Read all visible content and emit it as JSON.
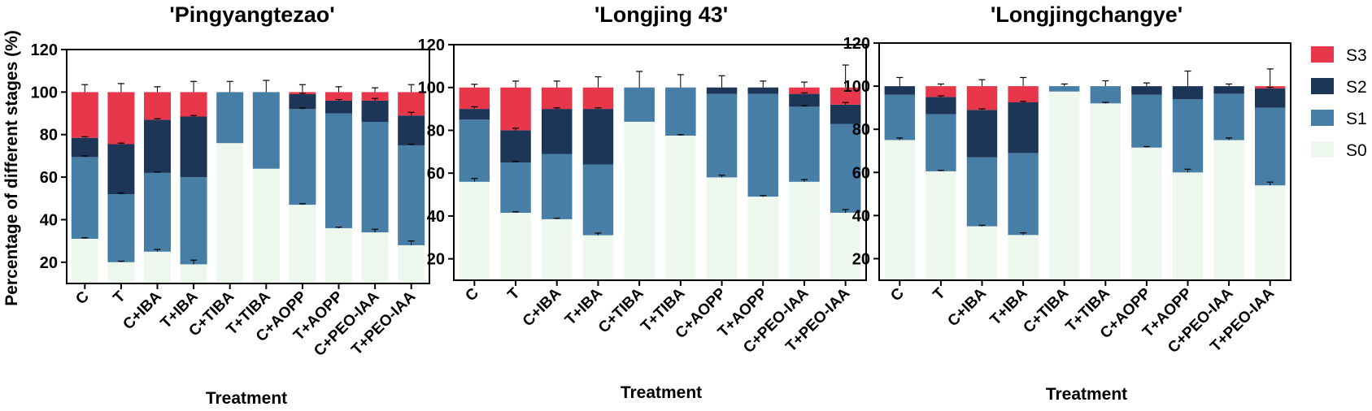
{
  "chart_data": [
    {
      "type": "bar",
      "stacked": true,
      "title": "'Pingyangtezao'",
      "xlabel": "Treatment",
      "ylabel": "Percentage of different stages (%)",
      "ylim": [
        10,
        120
      ],
      "yticks": [
        20,
        40,
        60,
        80,
        100,
        120
      ],
      "categories": [
        "C",
        "T",
        "C+IBA",
        "T+IBA",
        "C+TIBA",
        "T+TIBA",
        "C+AOPP",
        "T+AOPP",
        "C+PEO-IAA",
        "T+PEO-IAA"
      ],
      "series": [
        {
          "name": "S0",
          "values": [
            31,
            20,
            25,
            19,
            76,
            64,
            47,
            36,
            34,
            28
          ],
          "errors": [
            0.5,
            0.5,
            1,
            2,
            0,
            0,
            0.5,
            0.5,
            1.5,
            2
          ]
        },
        {
          "name": "S1",
          "values": [
            38.5,
            32,
            37,
            41,
            24,
            36,
            45,
            54,
            52,
            47
          ],
          "errors": [
            0.5,
            0.5,
            0.5,
            0,
            0,
            0,
            0.5,
            0,
            0,
            0.5
          ]
        },
        {
          "name": "S2",
          "values": [
            9,
            23.5,
            25,
            28.5,
            0,
            0,
            7,
            6,
            10,
            14
          ],
          "errors": [
            0.5,
            0.5,
            0.5,
            0.5,
            0,
            0,
            0.5,
            0.5,
            1,
            1.5
          ]
        },
        {
          "name": "S3",
          "values": [
            21.5,
            24.5,
            13,
            11.5,
            0,
            0,
            1,
            4,
            4,
            11
          ],
          "errors": [
            3.5,
            4,
            2.5,
            5,
            5,
            5.5,
            3.5,
            2.5,
            2,
            3.5
          ]
        }
      ]
    },
    {
      "type": "bar",
      "stacked": true,
      "title": "'Longjing 43'",
      "xlabel": "Treatment",
      "ylabel": "",
      "ylim": [
        10,
        120
      ],
      "yticks": [
        20,
        40,
        60,
        80,
        100,
        120
      ],
      "categories": [
        "C",
        "T",
        "C+IBA",
        "T+IBA",
        "C+TIBA",
        "T+TIBA",
        "C+AOPP",
        "T+AOPP",
        "C+PEO-IAA",
        "T+PEO-IAA"
      ],
      "series": [
        {
          "name": "S0",
          "values": [
            56,
            41.5,
            38.5,
            31,
            84,
            77.5,
            58,
            49,
            56,
            41.5
          ],
          "errors": [
            1.5,
            0.5,
            0.5,
            1,
            0,
            0.5,
            1,
            0.5,
            1,
            1.5
          ]
        },
        {
          "name": "S1",
          "values": [
            29,
            23.5,
            30.5,
            33,
            16,
            22.5,
            39,
            48,
            35,
            41.5
          ],
          "errors": [
            0,
            0.5,
            0,
            0,
            0,
            0,
            0,
            0,
            0.5,
            0
          ]
        },
        {
          "name": "S2",
          "values": [
            5,
            15,
            21,
            26,
            0,
            0,
            3,
            3,
            6,
            9
          ],
          "errors": [
            1,
            1,
            0.5,
            0.5,
            0,
            0,
            0,
            0,
            0.5,
            1
          ]
        },
        {
          "name": "S3",
          "values": [
            10,
            20,
            10,
            10,
            0,
            0,
            0,
            0,
            3,
            8
          ],
          "errors": [
            1.5,
            3,
            3,
            5,
            7.5,
            6,
            5.5,
            3,
            2.5,
            10.5
          ]
        }
      ]
    },
    {
      "type": "bar",
      "stacked": true,
      "title": "'Longjingchangye'",
      "xlabel": "Treatment",
      "ylabel": "",
      "ylim": [
        10,
        120
      ],
      "yticks": [
        20,
        40,
        60,
        80,
        100,
        120
      ],
      "categories": [
        "C",
        "T",
        "C+IBA",
        "T+IBA",
        "C+TIBA",
        "T+TIBA",
        "C+AOPP",
        "T+AOPP",
        "C+PEO-IAA",
        "T+PEO-IAA"
      ],
      "series": [
        {
          "name": "S0",
          "values": [
            75,
            60.5,
            35,
            31,
            97.5,
            92,
            71.5,
            60,
            75,
            54
          ],
          "errors": [
            1,
            0.5,
            0.5,
            1,
            0,
            0.5,
            0.5,
            1.5,
            1,
            1.5
          ]
        },
        {
          "name": "S1",
          "values": [
            21,
            26.5,
            32,
            38,
            2.5,
            8,
            24.5,
            34,
            21.5,
            36
          ],
          "errors": [
            0,
            0,
            0,
            0,
            0,
            0,
            0,
            0,
            0,
            0
          ]
        },
        {
          "name": "S2",
          "values": [
            4,
            8,
            22,
            23.5,
            0,
            0,
            4,
            6,
            3.5,
            9
          ],
          "errors": [
            0,
            0.5,
            0.5,
            0.5,
            0,
            0,
            0,
            0,
            0,
            0.5
          ]
        },
        {
          "name": "S3",
          "values": [
            0,
            5,
            11,
            7.5,
            0,
            0,
            0,
            0,
            0,
            1
          ],
          "errors": [
            4,
            1,
            3,
            4,
            1,
            2.5,
            1.5,
            7,
            1,
            8
          ]
        }
      ]
    }
  ],
  "legend": [
    {
      "name": "S3",
      "color": "#e8374a"
    },
    {
      "name": "S2",
      "color": "#1d3557"
    },
    {
      "name": "S1",
      "color": "#467ea6"
    },
    {
      "name": "S0",
      "color": "#eef7ee"
    }
  ]
}
